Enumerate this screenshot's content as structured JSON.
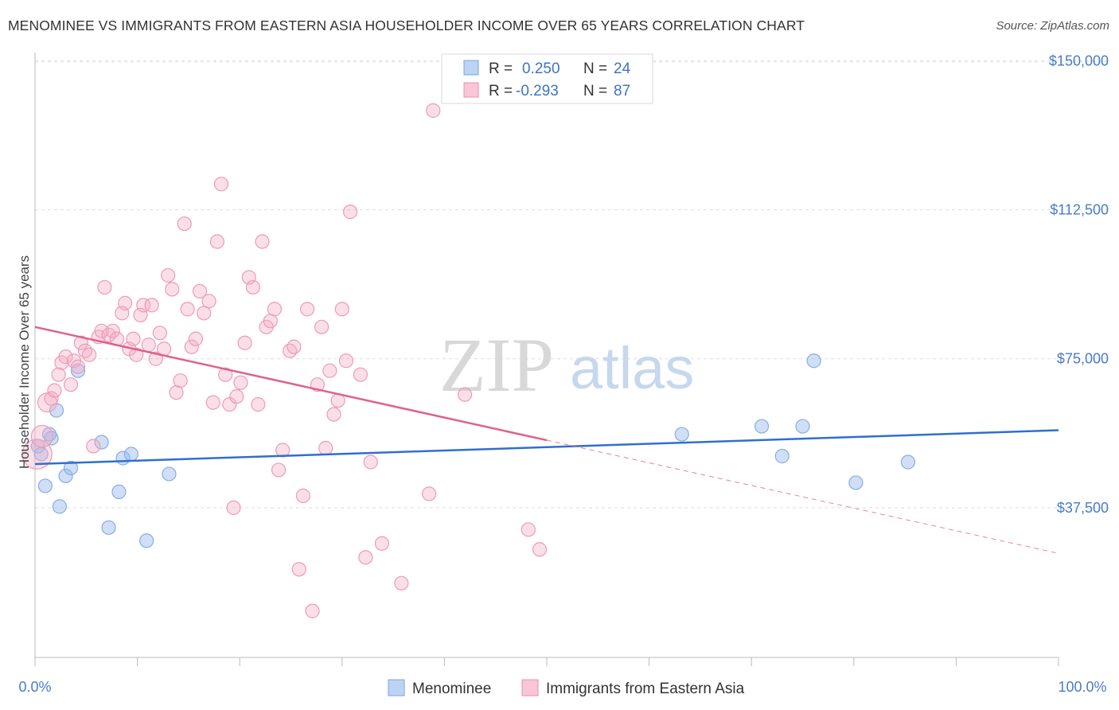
{
  "title": "MENOMINEE VS IMMIGRANTS FROM EASTERN ASIA HOUSEHOLDER INCOME OVER 65 YEARS CORRELATION CHART",
  "source": "Source: ZipAtlas.com",
  "watermark": {
    "zip": "ZIP",
    "atlas": "atlas"
  },
  "legend": {
    "rows": [
      {
        "r_label": "R =",
        "r_value": "0.250",
        "n_label": "N =",
        "n_value": "24"
      },
      {
        "r_label": "R =",
        "r_value": "-0.293",
        "n_label": "N =",
        "n_value": "87"
      }
    ]
  },
  "bottom_legend": [
    "Menominee",
    "Immigrants from Eastern Asia"
  ],
  "chart_data": {
    "type": "scatter",
    "title": "MENOMINEE VS IMMIGRANTS FROM EASTERN ASIA HOUSEHOLDER INCOME OVER 65 YEARS CORRELATION CHART",
    "xlabel": "",
    "ylabel": "Householder Income Over 65 years",
    "xlim": [
      0,
      100
    ],
    "ylim": [
      0,
      152500
    ],
    "x_tick_labels": [
      "0.0%",
      "100.0%"
    ],
    "y_ticks": [
      37500,
      75000,
      112500,
      150000
    ],
    "y_tick_labels": [
      "$37,500",
      "$75,000",
      "$112,500",
      "$150,000"
    ],
    "grid": "horizontal dashed",
    "legend_position": "top-center",
    "colors": {
      "menominee": "#6e9fe0",
      "immigrants": "#f08cab",
      "menominee_line": "#2f6fcf",
      "immigrants_line": "#e0608c"
    },
    "series": [
      {
        "name": "Menominee",
        "r": 0.25,
        "n": 24,
        "trend": {
          "x": [
            0,
            100
          ],
          "y": [
            48500,
            57000
          ]
        },
        "points": [
          {
            "x": 0.3,
            "y": 53000,
            "s": 1
          },
          {
            "x": 0.6,
            "y": 51000,
            "s": 1
          },
          {
            "x": 1.0,
            "y": 43000,
            "s": 1
          },
          {
            "x": 1.4,
            "y": 56000,
            "s": 1
          },
          {
            "x": 1.6,
            "y": 55000,
            "s": 1
          },
          {
            "x": 2.1,
            "y": 62000,
            "s": 1
          },
          {
            "x": 2.4,
            "y": 37800,
            "s": 1
          },
          {
            "x": 3.0,
            "y": 45500,
            "s": 1
          },
          {
            "x": 3.5,
            "y": 47500,
            "s": 1
          },
          {
            "x": 4.2,
            "y": 72000,
            "s": 1
          },
          {
            "x": 6.5,
            "y": 54000,
            "s": 1
          },
          {
            "x": 7.2,
            "y": 32500,
            "s": 1
          },
          {
            "x": 8.2,
            "y": 41500,
            "s": 1
          },
          {
            "x": 8.6,
            "y": 50000,
            "s": 1
          },
          {
            "x": 9.4,
            "y": 51000,
            "s": 1
          },
          {
            "x": 10.9,
            "y": 29200,
            "s": 1
          },
          {
            "x": 13.1,
            "y": 46000,
            "s": 1
          },
          {
            "x": 63.2,
            "y": 56000,
            "s": 1
          },
          {
            "x": 71.0,
            "y": 58000,
            "s": 1
          },
          {
            "x": 73.0,
            "y": 50500,
            "s": 1
          },
          {
            "x": 75.0,
            "y": 58000,
            "s": 1
          },
          {
            "x": 76.1,
            "y": 74500,
            "s": 1
          },
          {
            "x": 80.2,
            "y": 43800,
            "s": 1
          },
          {
            "x": 85.3,
            "y": 49000,
            "s": 1
          }
        ]
      },
      {
        "name": "Immigrants from Eastern Asia",
        "r": -0.293,
        "n": 87,
        "trend": {
          "x": [
            0,
            50
          ],
          "y": [
            83000,
            54500
          ]
        },
        "trend_dashed": {
          "x": [
            50,
            100
          ],
          "y": [
            54500,
            26000
          ]
        },
        "points": [
          {
            "x": 0.2,
            "y": 51000,
            "s": 2.2
          },
          {
            "x": 0.7,
            "y": 55500,
            "s": 1.6
          },
          {
            "x": 1.2,
            "y": 64000,
            "s": 1.4
          },
          {
            "x": 1.6,
            "y": 65000,
            "s": 1
          },
          {
            "x": 1.9,
            "y": 67000,
            "s": 1
          },
          {
            "x": 2.3,
            "y": 71000,
            "s": 1
          },
          {
            "x": 2.6,
            "y": 74000,
            "s": 1
          },
          {
            "x": 3.0,
            "y": 75500,
            "s": 1
          },
          {
            "x": 3.5,
            "y": 68500,
            "s": 1
          },
          {
            "x": 3.8,
            "y": 74500,
            "s": 1
          },
          {
            "x": 4.2,
            "y": 73000,
            "s": 1
          },
          {
            "x": 4.5,
            "y": 79000,
            "s": 1
          },
          {
            "x": 4.9,
            "y": 77000,
            "s": 1
          },
          {
            "x": 5.3,
            "y": 76000,
            "s": 1
          },
          {
            "x": 5.7,
            "y": 53000,
            "s": 1
          },
          {
            "x": 6.2,
            "y": 80500,
            "s": 1
          },
          {
            "x": 6.5,
            "y": 82000,
            "s": 1
          },
          {
            "x": 6.8,
            "y": 93000,
            "s": 1
          },
          {
            "x": 7.2,
            "y": 81000,
            "s": 1
          },
          {
            "x": 7.6,
            "y": 82000,
            "s": 1
          },
          {
            "x": 8.0,
            "y": 80000,
            "s": 1
          },
          {
            "x": 8.5,
            "y": 86500,
            "s": 1
          },
          {
            "x": 8.8,
            "y": 89000,
            "s": 1
          },
          {
            "x": 9.2,
            "y": 77500,
            "s": 1
          },
          {
            "x": 9.6,
            "y": 80000,
            "s": 1
          },
          {
            "x": 9.9,
            "y": 76000,
            "s": 1
          },
          {
            "x": 10.3,
            "y": 86000,
            "s": 1
          },
          {
            "x": 10.6,
            "y": 88500,
            "s": 1
          },
          {
            "x": 11.1,
            "y": 78500,
            "s": 1
          },
          {
            "x": 11.4,
            "y": 88500,
            "s": 1
          },
          {
            "x": 11.8,
            "y": 75000,
            "s": 1
          },
          {
            "x": 12.2,
            "y": 81500,
            "s": 1
          },
          {
            "x": 12.6,
            "y": 77500,
            "s": 1
          },
          {
            "x": 13.0,
            "y": 96000,
            "s": 1
          },
          {
            "x": 13.4,
            "y": 92500,
            "s": 1
          },
          {
            "x": 13.8,
            "y": 66500,
            "s": 1
          },
          {
            "x": 14.2,
            "y": 69500,
            "s": 1
          },
          {
            "x": 14.6,
            "y": 109000,
            "s": 1
          },
          {
            "x": 14.9,
            "y": 87500,
            "s": 1
          },
          {
            "x": 15.3,
            "y": 78000,
            "s": 1
          },
          {
            "x": 15.7,
            "y": 80000,
            "s": 1
          },
          {
            "x": 16.1,
            "y": 92000,
            "s": 1
          },
          {
            "x": 16.5,
            "y": 86500,
            "s": 1
          },
          {
            "x": 17.0,
            "y": 89500,
            "s": 1
          },
          {
            "x": 17.4,
            "y": 64000,
            "s": 1
          },
          {
            "x": 17.8,
            "y": 104500,
            "s": 1
          },
          {
            "x": 18.2,
            "y": 119000,
            "s": 1
          },
          {
            "x": 18.6,
            "y": 71000,
            "s": 1
          },
          {
            "x": 19.0,
            "y": 63500,
            "s": 1
          },
          {
            "x": 19.4,
            "y": 37500,
            "s": 1
          },
          {
            "x": 19.7,
            "y": 65500,
            "s": 1
          },
          {
            "x": 20.1,
            "y": 69000,
            "s": 1
          },
          {
            "x": 20.5,
            "y": 79000,
            "s": 1
          },
          {
            "x": 20.9,
            "y": 95500,
            "s": 1
          },
          {
            "x": 21.3,
            "y": 93000,
            "s": 1
          },
          {
            "x": 21.8,
            "y": 63500,
            "s": 1
          },
          {
            "x": 22.2,
            "y": 104500,
            "s": 1
          },
          {
            "x": 22.6,
            "y": 83000,
            "s": 1
          },
          {
            "x": 23.0,
            "y": 84500,
            "s": 1
          },
          {
            "x": 23.4,
            "y": 87500,
            "s": 1
          },
          {
            "x": 23.8,
            "y": 47000,
            "s": 1
          },
          {
            "x": 24.2,
            "y": 52000,
            "s": 1
          },
          {
            "x": 24.9,
            "y": 77000,
            "s": 1
          },
          {
            "x": 25.3,
            "y": 78000,
            "s": 1
          },
          {
            "x": 25.8,
            "y": 22000,
            "s": 1
          },
          {
            "x": 26.2,
            "y": 40500,
            "s": 1
          },
          {
            "x": 26.6,
            "y": 87500,
            "s": 1
          },
          {
            "x": 27.1,
            "y": 11500,
            "s": 1
          },
          {
            "x": 27.6,
            "y": 68500,
            "s": 1
          },
          {
            "x": 28.0,
            "y": 83000,
            "s": 1
          },
          {
            "x": 28.4,
            "y": 52500,
            "s": 1
          },
          {
            "x": 28.8,
            "y": 72000,
            "s": 1
          },
          {
            "x": 29.2,
            "y": 61000,
            "s": 1
          },
          {
            "x": 29.6,
            "y": 64500,
            "s": 1
          },
          {
            "x": 30.0,
            "y": 87500,
            "s": 1
          },
          {
            "x": 30.4,
            "y": 74500,
            "s": 1
          },
          {
            "x": 30.8,
            "y": 112000,
            "s": 1
          },
          {
            "x": 31.8,
            "y": 71000,
            "s": 1
          },
          {
            "x": 32.3,
            "y": 25000,
            "s": 1
          },
          {
            "x": 32.8,
            "y": 49000,
            "s": 1
          },
          {
            "x": 33.9,
            "y": 28500,
            "s": 1
          },
          {
            "x": 35.8,
            "y": 18500,
            "s": 1
          },
          {
            "x": 38.5,
            "y": 41000,
            "s": 1
          },
          {
            "x": 38.9,
            "y": 137500,
            "s": 1
          },
          {
            "x": 42.0,
            "y": 66000,
            "s": 1
          },
          {
            "x": 48.2,
            "y": 32000,
            "s": 1
          },
          {
            "x": 49.3,
            "y": 27000,
            "s": 1
          }
        ]
      }
    ]
  }
}
